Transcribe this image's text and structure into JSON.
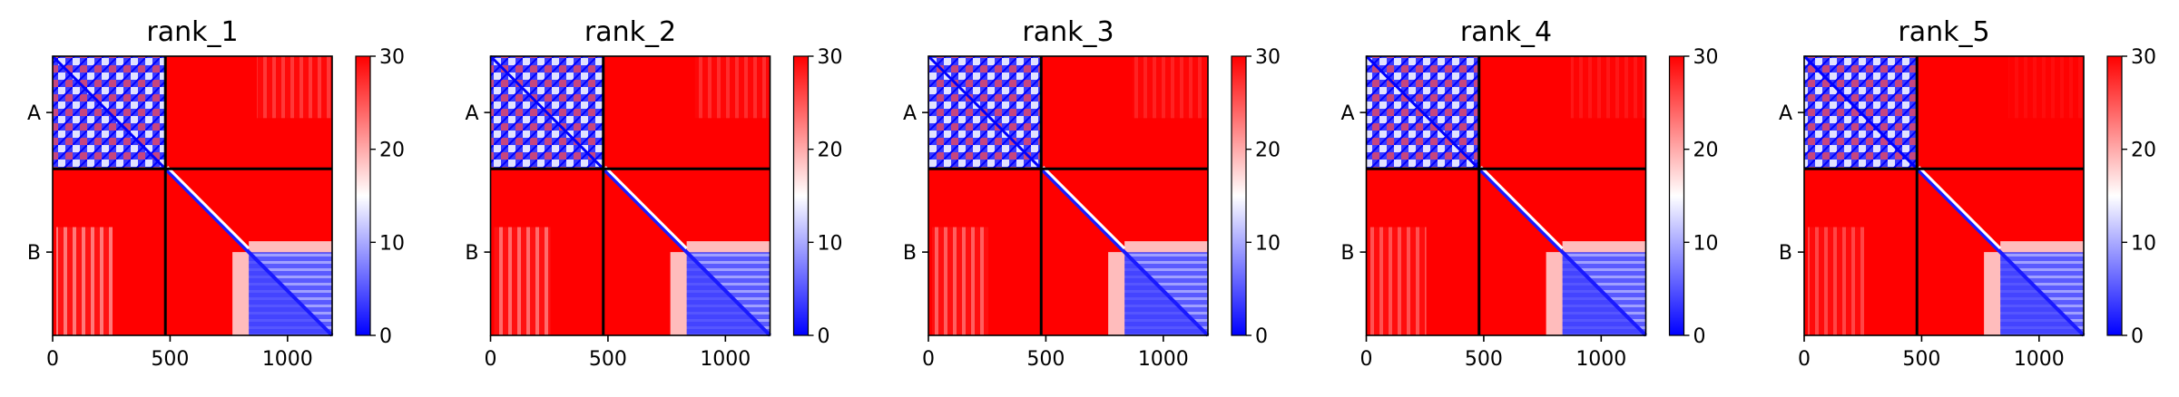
{
  "colormap": {
    "name": "bwr",
    "low_color": "#0000ff",
    "mid_color": "#ffffff",
    "high_color": "#ff0000"
  },
  "chart_data": [
    {
      "type": "heatmap",
      "title": "rank_1",
      "chain_labels": [
        "A",
        "B"
      ],
      "chain_boundary": 480,
      "xlim": [
        0,
        1190
      ],
      "xticks": [
        0,
        500,
        1000
      ],
      "colorbar": {
        "range": [
          0,
          30
        ],
        "ticks": [
          0,
          10,
          20,
          30
        ]
      }
    },
    {
      "type": "heatmap",
      "title": "rank_2",
      "chain_labels": [
        "A",
        "B"
      ],
      "chain_boundary": 480,
      "xlim": [
        0,
        1190
      ],
      "xticks": [
        0,
        500,
        1000
      ],
      "colorbar": {
        "range": [
          0,
          30
        ],
        "ticks": [
          0,
          10,
          20,
          30
        ]
      }
    },
    {
      "type": "heatmap",
      "title": "rank_3",
      "chain_labels": [
        "A",
        "B"
      ],
      "chain_boundary": 480,
      "xlim": [
        0,
        1190
      ],
      "xticks": [
        0,
        500,
        1000
      ],
      "colorbar": {
        "range": [
          0,
          30
        ],
        "ticks": [
          0,
          10,
          20,
          30
        ]
      }
    },
    {
      "type": "heatmap",
      "title": "rank_4",
      "chain_labels": [
        "A",
        "B"
      ],
      "chain_boundary": 480,
      "xlim": [
        0,
        1190
      ],
      "xticks": [
        0,
        500,
        1000
      ],
      "colorbar": {
        "range": [
          0,
          30
        ],
        "ticks": [
          0,
          10,
          20,
          30
        ]
      }
    },
    {
      "type": "heatmap",
      "title": "rank_5",
      "chain_labels": [
        "A",
        "B"
      ],
      "chain_boundary": 480,
      "xlim": [
        0,
        1190
      ],
      "xticks": [
        0,
        500,
        1000
      ],
      "colorbar": {
        "range": [
          0,
          30
        ],
        "ticks": [
          0,
          10,
          20,
          30
        ]
      }
    }
  ]
}
